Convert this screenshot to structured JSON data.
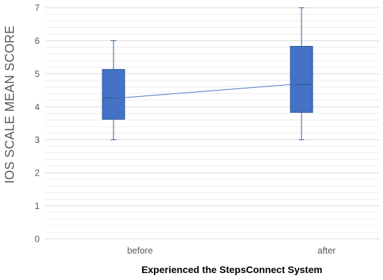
{
  "chart_data": {
    "type": "box",
    "categories": [
      "before",
      "after"
    ],
    "series": [
      {
        "boxes": [
          {
            "category": "before",
            "min": 3,
            "q1": 3.62,
            "median": 4.27,
            "q3": 5.13,
            "max": 6,
            "mean": 4.25
          },
          {
            "category": "after",
            "min": 3,
            "q1": 3.83,
            "median": 4.67,
            "q3": 5.83,
            "max": 7,
            "mean": 4.7
          }
        ]
      }
    ],
    "mean_line": true,
    "title": "",
    "xlabel": "Experienced the StepsConnect System",
    "ylabel": "IOS SCALE MEAN SCORE",
    "ylim": [
      0,
      7
    ],
    "yticks": [
      0,
      1,
      2,
      3,
      4,
      5,
      6,
      7
    ],
    "grid": true,
    "minor_grid": true,
    "legend": "none",
    "colors": {
      "box_fill": "#4472C4",
      "box_stroke": "#2F5597",
      "whisker": "#2F5597",
      "mean_line": "#4472C4",
      "grid_major": "#D9D9D9",
      "grid_minor": "#EDEDED",
      "axis_text": "#595959"
    }
  }
}
